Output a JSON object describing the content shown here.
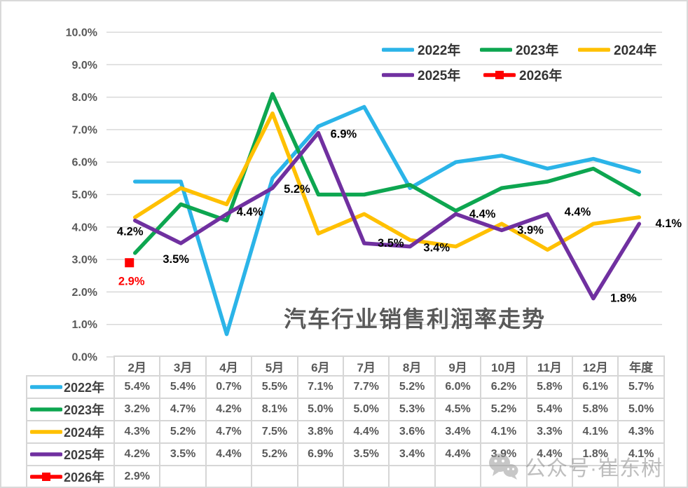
{
  "title": "汽车行业销售利润率走势",
  "watermark": {
    "text": "公众号·崔东树",
    "icon": "wechat-icon"
  },
  "colors": {
    "grid": "#d9d9d9",
    "axis_text": "#595959",
    "point_label_text": "#000000",
    "table_border": "#d6d6d6",
    "table_text": "#595959",
    "title_text": "#595959"
  },
  "chart_data": {
    "type": "line",
    "title": "汽车行业销售利润率走势",
    "categories": [
      "2月",
      "3月",
      "4月",
      "5月",
      "6月",
      "7月",
      "8月",
      "9月",
      "10月",
      "11月",
      "12月",
      "年度"
    ],
    "y_axis": {
      "min": 0,
      "max": 10,
      "step": 1,
      "tick_labels": [
        "0.0%",
        "1.0%",
        "2.0%",
        "3.0%",
        "4.0%",
        "5.0%",
        "6.0%",
        "7.0%",
        "8.0%",
        "9.0%",
        "10.0%"
      ]
    },
    "grid": true,
    "legend_position": "top-right",
    "series": [
      {
        "name": "2022年",
        "color": "#2BB4E8",
        "marker": "none",
        "values": [
          5.4,
          5.4,
          0.7,
          5.5,
          7.1,
          7.7,
          5.2,
          6.0,
          6.2,
          5.8,
          6.1,
          5.7
        ]
      },
      {
        "name": "2023年",
        "color": "#0DA650",
        "marker": "none",
        "values": [
          3.2,
          4.7,
          4.2,
          8.1,
          5.0,
          5.0,
          5.3,
          4.5,
          5.2,
          5.4,
          5.8,
          5.0
        ]
      },
      {
        "name": "2024年",
        "color": "#FFC000",
        "marker": "none",
        "values": [
          4.3,
          5.2,
          4.7,
          7.5,
          3.8,
          4.4,
          3.6,
          3.4,
          4.1,
          3.3,
          4.1,
          4.3
        ]
      },
      {
        "name": "2025年",
        "color": "#7030A0",
        "marker": "none",
        "values": [
          4.2,
          3.5,
          4.4,
          5.2,
          6.9,
          3.5,
          3.4,
          4.4,
          3.9,
          4.4,
          1.8,
          4.1
        ],
        "point_labels": [
          "4.2%",
          "3.5%",
          "4.4%",
          "5.2%",
          "6.9%",
          "3.5%",
          "3.4%",
          "4.4%",
          "3.9%",
          "4.4%",
          "1.8%",
          "4.1%"
        ],
        "label_color": "#000000",
        "label_offsets": [
          [
            -7,
            16
          ],
          [
            -7,
            23
          ],
          [
            33,
            -3
          ],
          [
            35,
            2
          ],
          [
            36,
            2
          ],
          [
            38,
            0
          ],
          [
            38,
            2
          ],
          [
            38,
            0
          ],
          [
            41,
            0
          ],
          [
            43,
            -3
          ],
          [
            43,
            0
          ],
          [
            42,
            0
          ]
        ]
      },
      {
        "name": "2026年",
        "color": "#FF0000",
        "marker": "square",
        "values": [
          2.9,
          null,
          null,
          null,
          null,
          null,
          null,
          null,
          null,
          null,
          null,
          null
        ],
        "point_labels": [
          "2.9%",
          "",
          "",
          "",
          "",
          "",
          "",
          "",
          "",
          "",
          "",
          ""
        ],
        "label_color": "#FF0000",
        "label_offsets": [
          [
            5,
            27
          ]
        ]
      }
    ]
  },
  "table": {
    "header": [
      "2月",
      "3月",
      "4月",
      "5月",
      "6月",
      "7月",
      "8月",
      "9月",
      "10月",
      "11月",
      "12月",
      "年度"
    ],
    "rows": [
      {
        "label": "2022年",
        "swatch_color": "#2BB4E8",
        "marker": "none",
        "cells": [
          "5.4%",
          "5.4%",
          "0.7%",
          "5.5%",
          "7.1%",
          "7.7%",
          "5.2%",
          "6.0%",
          "6.2%",
          "5.8%",
          "6.1%",
          "5.7%"
        ]
      },
      {
        "label": "2023年",
        "swatch_color": "#0DA650",
        "marker": "none",
        "cells": [
          "3.2%",
          "4.7%",
          "4.2%",
          "8.1%",
          "5.0%",
          "5.0%",
          "5.3%",
          "4.5%",
          "5.2%",
          "5.4%",
          "5.8%",
          "5.0%"
        ]
      },
      {
        "label": "2024年",
        "swatch_color": "#FFC000",
        "marker": "none",
        "cells": [
          "4.3%",
          "5.2%",
          "4.7%",
          "7.5%",
          "3.8%",
          "4.4%",
          "3.6%",
          "3.4%",
          "4.1%",
          "3.3%",
          "4.1%",
          "4.3%"
        ]
      },
      {
        "label": "2025年",
        "swatch_color": "#7030A0",
        "marker": "none",
        "cells": [
          "4.2%",
          "3.5%",
          "4.4%",
          "5.2%",
          "6.9%",
          "3.5%",
          "3.4%",
          "4.4%",
          "3.9%",
          "4.4%",
          "1.8%",
          "4.1%"
        ]
      },
      {
        "label": "2026年",
        "swatch_color": "#FF0000",
        "marker": "square",
        "cells": [
          "2.9%",
          "",
          "",
          "",
          "",
          "",
          "",
          "",
          "",
          "",
          "",
          ""
        ]
      }
    ]
  }
}
